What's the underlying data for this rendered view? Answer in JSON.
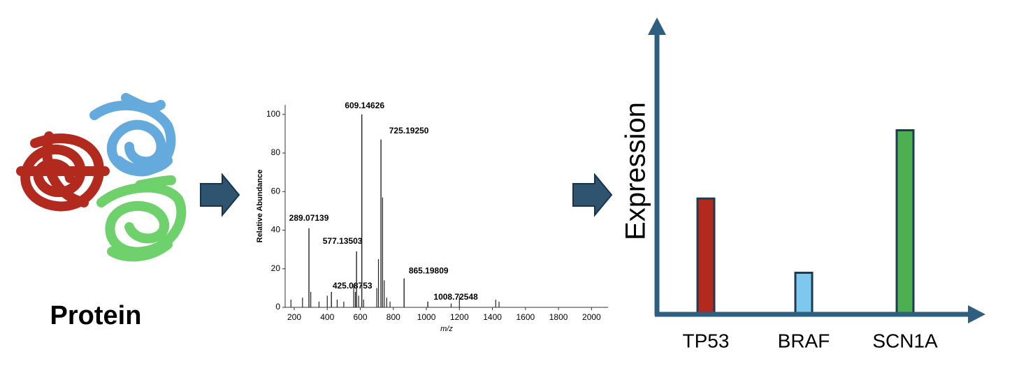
{
  "protein_label": "Protein",
  "chart_data": [
    {
      "type": "stem",
      "xlabel": "m/z",
      "ylabel": "Relative Abundance",
      "x": [
        289.07139,
        425.08753,
        577.13503,
        609.14626,
        725.1925,
        865.19809,
        1008.72548
      ],
      "x_labels": [
        "289.07139",
        "425.08753",
        "577.13503",
        "609.14626",
        "725.19250",
        "865.19809",
        "1008.72548"
      ],
      "values": [
        41,
        8,
        29,
        100,
        87,
        15,
        3
      ],
      "minor_x": [
        180,
        250,
        300,
        350,
        400,
        460,
        500,
        560,
        570,
        590,
        620,
        700,
        710,
        735,
        745,
        760,
        780,
        1150,
        1200,
        1420,
        1440
      ],
      "minor_values": [
        4,
        5,
        8,
        3,
        6,
        4,
        3,
        12,
        8,
        6,
        4,
        10,
        25,
        57,
        14,
        5,
        3,
        2,
        6,
        4,
        3
      ],
      "color": "#222222",
      "xlim": [
        145,
        2100
      ],
      "ylim": [
        0,
        105
      ],
      "xticks": [
        200,
        400,
        600,
        800,
        1000,
        1200,
        1400,
        1600,
        1800,
        2000
      ],
      "yticks": [
        0,
        20,
        40,
        60,
        80,
        100
      ]
    },
    {
      "type": "bar",
      "ylabel": "Expression",
      "categories": [
        "TP53",
        "BRAF",
        "SCN1A"
      ],
      "values": [
        39,
        14,
        62
      ],
      "colors": [
        "#b22a1e",
        "#7ec8f0",
        "#4caf50"
      ],
      "ylim": [
        0,
        100
      ]
    }
  ]
}
